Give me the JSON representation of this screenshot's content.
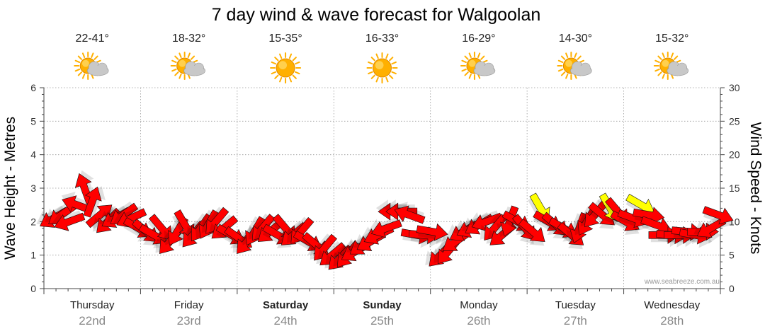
{
  "title": "7 day wind & wave forecast for Walgoolan",
  "watermark": "www.seabreeze.com.au",
  "colors": {
    "light_wind": "#ffff00",
    "strong_wind": "#ff0000",
    "sun": "#ffb000",
    "cloud": "#c8c8c8"
  },
  "days": [
    {
      "name": "Thursday",
      "date": "22nd",
      "temp": "22-41°",
      "weather": "partly-cloudy-icon",
      "bold": false
    },
    {
      "name": "Friday",
      "date": "23rd",
      "temp": "18-32°",
      "weather": "partly-cloudy-icon",
      "bold": false
    },
    {
      "name": "Saturday",
      "date": "24th",
      "temp": "15-35°",
      "weather": "sunny-icon",
      "bold": true
    },
    {
      "name": "Sunday",
      "date": "25th",
      "temp": "16-33°",
      "weather": "sunny-icon",
      "bold": true
    },
    {
      "name": "Monday",
      "date": "26th",
      "temp": "16-29°",
      "weather": "partly-cloudy-icon",
      "bold": false
    },
    {
      "name": "Tuesday",
      "date": "27th",
      "temp": "14-30°",
      "weather": "partly-cloudy-icon",
      "bold": false
    },
    {
      "name": "Wednesday",
      "date": "28th",
      "temp": "15-32°",
      "weather": "partly-cloudy-icon",
      "bold": false
    }
  ],
  "chart_data": {
    "type": "line",
    "title": "7 day wind & wave forecast for Walgoolan",
    "categories": [
      "Thursday 22nd",
      "Friday 23rd",
      "Saturday 24th",
      "Sunday 25th",
      "Monday 26th",
      "Tuesday 27th",
      "Wednesday 28th"
    ],
    "y_left": {
      "label": "Wave Height - Metres",
      "ticks": [
        "0",
        "1",
        "2",
        "3",
        "4",
        "5",
        "6"
      ],
      "range": [
        0,
        6
      ]
    },
    "y_right": {
      "label": "Wind Speed - Knots",
      "ticks": [
        "0",
        "5",
        "10",
        "15",
        "20",
        "25",
        "30"
      ],
      "range": [
        0,
        30
      ]
    },
    "x_range_days": [
      0,
      7
    ],
    "series": [
      {
        "name": "Wind Speed",
        "unit": "knots",
        "points": [
          {
            "t": 0.0,
            "speed": 10.5,
            "dir": 60
          },
          {
            "t": 0.08,
            "speed": 11.0,
            "dir": 55
          },
          {
            "t": 0.16,
            "speed": 10.0,
            "dir": 70
          },
          {
            "t": 0.24,
            "speed": 12.5,
            "dir": 110
          },
          {
            "t": 0.32,
            "speed": 15.0,
            "dir": 160
          },
          {
            "t": 0.4,
            "speed": 13.0,
            "dir": 200
          },
          {
            "t": 0.48,
            "speed": 11.0,
            "dir": 230
          },
          {
            "t": 0.56,
            "speed": 10.0,
            "dir": 45
          },
          {
            "t": 0.64,
            "speed": 10.5,
            "dir": 60
          },
          {
            "t": 0.72,
            "speed": 11.0,
            "dir": 55
          },
          {
            "t": 0.8,
            "speed": 10.5,
            "dir": 65
          },
          {
            "t": 0.88,
            "speed": 9.0,
            "dir": 300
          },
          {
            "t": 0.96,
            "speed": 8.5,
            "dir": 310
          },
          {
            "t": 1.04,
            "speed": 8.0,
            "dir": 300
          },
          {
            "t": 1.12,
            "speed": 9.0,
            "dir": 320
          },
          {
            "t": 1.2,
            "speed": 7.0,
            "dir": 40
          },
          {
            "t": 1.28,
            "speed": 8.5,
            "dir": 30
          },
          {
            "t": 1.36,
            "speed": 9.5,
            "dir": 330
          },
          {
            "t": 1.44,
            "speed": 8.0,
            "dir": 40
          },
          {
            "t": 1.52,
            "speed": 9.0,
            "dir": 35
          },
          {
            "t": 1.6,
            "speed": 9.5,
            "dir": 30
          },
          {
            "t": 1.68,
            "speed": 10.0,
            "dir": 40
          },
          {
            "t": 1.76,
            "speed": 9.0,
            "dir": 50
          },
          {
            "t": 1.84,
            "speed": 8.0,
            "dir": 300
          },
          {
            "t": 1.92,
            "speed": 7.5,
            "dir": 305
          },
          {
            "t": 2.0,
            "speed": 7.0,
            "dir": 40
          },
          {
            "t": 2.08,
            "speed": 8.5,
            "dir": 30
          },
          {
            "t": 2.16,
            "speed": 9.0,
            "dir": 40
          },
          {
            "t": 2.24,
            "speed": 8.5,
            "dir": 50
          },
          {
            "t": 2.32,
            "speed": 8.0,
            "dir": 300
          },
          {
            "t": 2.4,
            "speed": 9.0,
            "dir": 320
          },
          {
            "t": 2.48,
            "speed": 8.0,
            "dir": 50
          },
          {
            "t": 2.56,
            "speed": 8.5,
            "dir": 40
          },
          {
            "t": 2.64,
            "speed": 7.0,
            "dir": 300
          },
          {
            "t": 2.72,
            "speed": 6.5,
            "dir": 310
          },
          {
            "t": 2.8,
            "speed": 6.0,
            "dir": 40
          },
          {
            "t": 2.88,
            "speed": 5.0,
            "dir": 50
          },
          {
            "t": 2.96,
            "speed": 4.5,
            "dir": 45
          },
          {
            "t": 3.04,
            "speed": 5.0,
            "dir": 40
          },
          {
            "t": 3.12,
            "speed": 5.5,
            "dir": 60
          },
          {
            "t": 3.2,
            "speed": 6.5,
            "dir": 55
          },
          {
            "t": 3.28,
            "speed": 7.0,
            "dir": 60
          },
          {
            "t": 3.36,
            "speed": 8.0,
            "dir": 65
          },
          {
            "t": 3.44,
            "speed": 9.0,
            "dir": 70
          },
          {
            "t": 3.52,
            "speed": 11.5,
            "dir": 90
          },
          {
            "t": 3.6,
            "speed": 11.5,
            "dir": 90
          },
          {
            "t": 3.68,
            "speed": 11.0,
            "dir": 110
          },
          {
            "t": 3.76,
            "speed": 8.0,
            "dir": 280
          },
          {
            "t": 3.84,
            "speed": 8.0,
            "dir": 275
          },
          {
            "t": 3.92,
            "speed": 8.5,
            "dir": 280
          },
          {
            "t": 4.0,
            "speed": 5.0,
            "dir": 45
          },
          {
            "t": 4.08,
            "speed": 5.5,
            "dir": 40
          },
          {
            "t": 4.16,
            "speed": 7.0,
            "dir": 55
          },
          {
            "t": 4.24,
            "speed": 8.5,
            "dir": 60
          },
          {
            "t": 4.32,
            "speed": 9.0,
            "dir": 65
          },
          {
            "t": 4.4,
            "speed": 9.5,
            "dir": 60
          },
          {
            "t": 4.48,
            "speed": 10.0,
            "dir": 70
          },
          {
            "t": 4.56,
            "speed": 9.0,
            "dir": 40
          },
          {
            "t": 4.64,
            "speed": 8.0,
            "dir": 50
          },
          {
            "t": 4.72,
            "speed": 10.0,
            "dir": 20
          },
          {
            "t": 4.8,
            "speed": 10.0,
            "dir": 300
          },
          {
            "t": 4.88,
            "speed": 9.0,
            "dir": 320
          },
          {
            "t": 4.96,
            "speed": 8.5,
            "dir": 310
          },
          {
            "t": 5.04,
            "speed": 12.0,
            "dir": 330,
            "light": true
          },
          {
            "t": 5.12,
            "speed": 10.0,
            "dir": 300
          },
          {
            "t": 5.2,
            "speed": 9.5,
            "dir": 310
          },
          {
            "t": 5.28,
            "speed": 9.0,
            "dir": 300
          },
          {
            "t": 5.36,
            "speed": 8.0,
            "dir": 310
          },
          {
            "t": 5.44,
            "speed": 9.0,
            "dir": 20
          },
          {
            "t": 5.52,
            "speed": 10.0,
            "dir": 30
          },
          {
            "t": 5.6,
            "speed": 11.0,
            "dir": 40
          },
          {
            "t": 5.68,
            "speed": 11.0,
            "dir": 310
          },
          {
            "t": 5.76,
            "speed": 12.0,
            "dir": 330,
            "light": true
          },
          {
            "t": 5.84,
            "speed": 11.5,
            "dir": 320
          },
          {
            "t": 5.92,
            "speed": 10.0,
            "dir": 300
          },
          {
            "t": 6.0,
            "speed": 10.5,
            "dir": 290
          },
          {
            "t": 6.08,
            "speed": 12.5,
            "dir": 300,
            "light": true
          },
          {
            "t": 6.16,
            "speed": 11.0,
            "dir": 280
          },
          {
            "t": 6.24,
            "speed": 9.5,
            "dir": 290
          },
          {
            "t": 6.32,
            "speed": 8.0,
            "dir": 270
          },
          {
            "t": 6.4,
            "speed": 8.0,
            "dir": 275
          },
          {
            "t": 6.48,
            "speed": 8.0,
            "dir": 270
          },
          {
            "t": 6.56,
            "speed": 8.5,
            "dir": 275
          },
          {
            "t": 6.64,
            "speed": 8.0,
            "dir": 280
          },
          {
            "t": 6.72,
            "speed": 8.5,
            "dir": 270
          },
          {
            "t": 6.8,
            "speed": 9.0,
            "dir": 60
          },
          {
            "t": 6.88,
            "speed": 11.0,
            "dir": 290
          }
        ]
      }
    ]
  }
}
